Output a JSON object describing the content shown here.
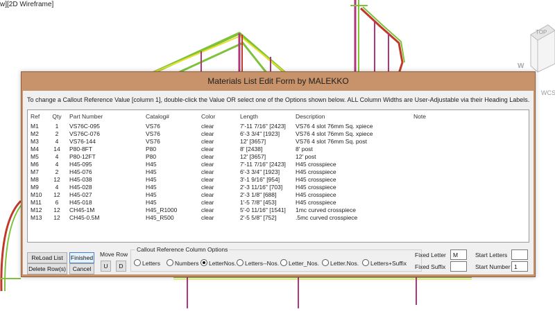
{
  "viewport": {
    "label": "w][2D Wireframe]",
    "viewcube_top": "TOP",
    "viewcube_w": "W",
    "wcs": "WCS"
  },
  "dialog": {
    "title": "Materials List Edit Form by MALEKKO",
    "instructions": "To change a Callout Reference Value [column 1],  double-click the Value OR select one of the Options shown below.    ALL Column Widths are User-Adjustable via their Heading Labels.",
    "columns": [
      "Ref",
      "Qty",
      "Part Number",
      "Catalog#",
      "Color",
      "Length",
      "Description",
      "Note"
    ],
    "rows": [
      {
        "ref": "M1",
        "qty": "1",
        "part": "VS76C-095",
        "catalog": "VS76",
        "color": "clear",
        "length": "7'-11 7/16\" [2423]",
        "desc": "VS76 4 slot 76mm Sq. xpiece",
        "note": ""
      },
      {
        "ref": "M2",
        "qty": "2",
        "part": "VS76C-076",
        "catalog": "VS76",
        "color": "clear",
        "length": "6'-3 3/4\" [1923]",
        "desc": "VS76 4 slot 76mm Sq. xpiece",
        "note": ""
      },
      {
        "ref": "M3",
        "qty": "4",
        "part": "VS76-144",
        "catalog": "VS76",
        "color": "clear",
        "length": "12' [3657]",
        "desc": "VS76 4 slot 76mm Sq. post",
        "note": ""
      },
      {
        "ref": "M4",
        "qty": "14",
        "part": "P80-8FT",
        "catalog": "P80",
        "color": "clear",
        "length": "8' [2438]",
        "desc": "8' post",
        "note": ""
      },
      {
        "ref": "M5",
        "qty": "4",
        "part": "P80-12FT",
        "catalog": "P80",
        "color": "clear",
        "length": "12' [3657]",
        "desc": "12' post",
        "note": ""
      },
      {
        "ref": "M6",
        "qty": "4",
        "part": "H45-095",
        "catalog": "H45",
        "color": "clear",
        "length": "7'-11 7/16\" [2423]",
        "desc": "H45 crosspiece",
        "note": ""
      },
      {
        "ref": "M7",
        "qty": "2",
        "part": "H45-076",
        "catalog": "H45",
        "color": "clear",
        "length": "6'-3 3/4\" [1923]",
        "desc": "H45 crosspiece",
        "note": ""
      },
      {
        "ref": "M8",
        "qty": "12",
        "part": "H45-038",
        "catalog": "H45",
        "color": "clear",
        "length": "3'-1 9/16\" [954]",
        "desc": "H45 crosspiece",
        "note": ""
      },
      {
        "ref": "M9",
        "qty": "4",
        "part": "H45-028",
        "catalog": "H45",
        "color": "clear",
        "length": "2'-3 11/16\" [703]",
        "desc": "H45 crosspiece",
        "note": ""
      },
      {
        "ref": "M10",
        "qty": "12",
        "part": "H45-027",
        "catalog": "H45",
        "color": "clear",
        "length": "2'-3 1/8\" [688]",
        "desc": "H45 crosspiece",
        "note": ""
      },
      {
        "ref": "M11",
        "qty": "6",
        "part": "H45-018",
        "catalog": "H45",
        "color": "clear",
        "length": "1'-5 7/8\" [453]",
        "desc": "H45 crosspiece",
        "note": ""
      },
      {
        "ref": "M12",
        "qty": "12",
        "part": "CH45-1M",
        "catalog": "H45_R1000",
        "color": "clear",
        "length": "5'-0 11/16\" [1541]",
        "desc": "1mc curved crosspiece",
        "note": ""
      },
      {
        "ref": "M13",
        "qty": "12",
        "part": "CH45-0.5M",
        "catalog": "H45_R500",
        "color": "clear",
        "length": "2'-5 5/8\" [752]",
        "desc": ".5mc curved crosspiece",
        "note": ""
      }
    ],
    "buttons": {
      "reload": "ReLoad List",
      "finished": "Finished",
      "delete": "Delete Row(s)",
      "cancel": "Cancel",
      "move_row": "Move Row",
      "up": "U",
      "down": "D"
    },
    "options": {
      "legend": "Callout Reference Column Options",
      "items": [
        "Letters",
        "Numbers",
        "LetterNos.",
        "Letters--Nos.",
        "Letter_Nos.",
        "Letter.Nos.",
        "Letters+Suffix"
      ],
      "selected": "LetterNos."
    },
    "fields": {
      "fixed_letter_label": "Fixed Letter",
      "fixed_letter_value": "M",
      "fixed_suffix_label": "Fixed Suffix",
      "fixed_suffix_value": "",
      "start_letters_label": "Start Letters",
      "start_letters_value": "",
      "start_number_label": "Start Number",
      "start_number_value": "1"
    }
  },
  "colors": {
    "dialog_frame": "#c8926a",
    "wire_green": "#7ec23a",
    "wire_yellow": "#e8e02a",
    "wire_magenta": "#b0357a",
    "wire_red": "#c0392b"
  }
}
